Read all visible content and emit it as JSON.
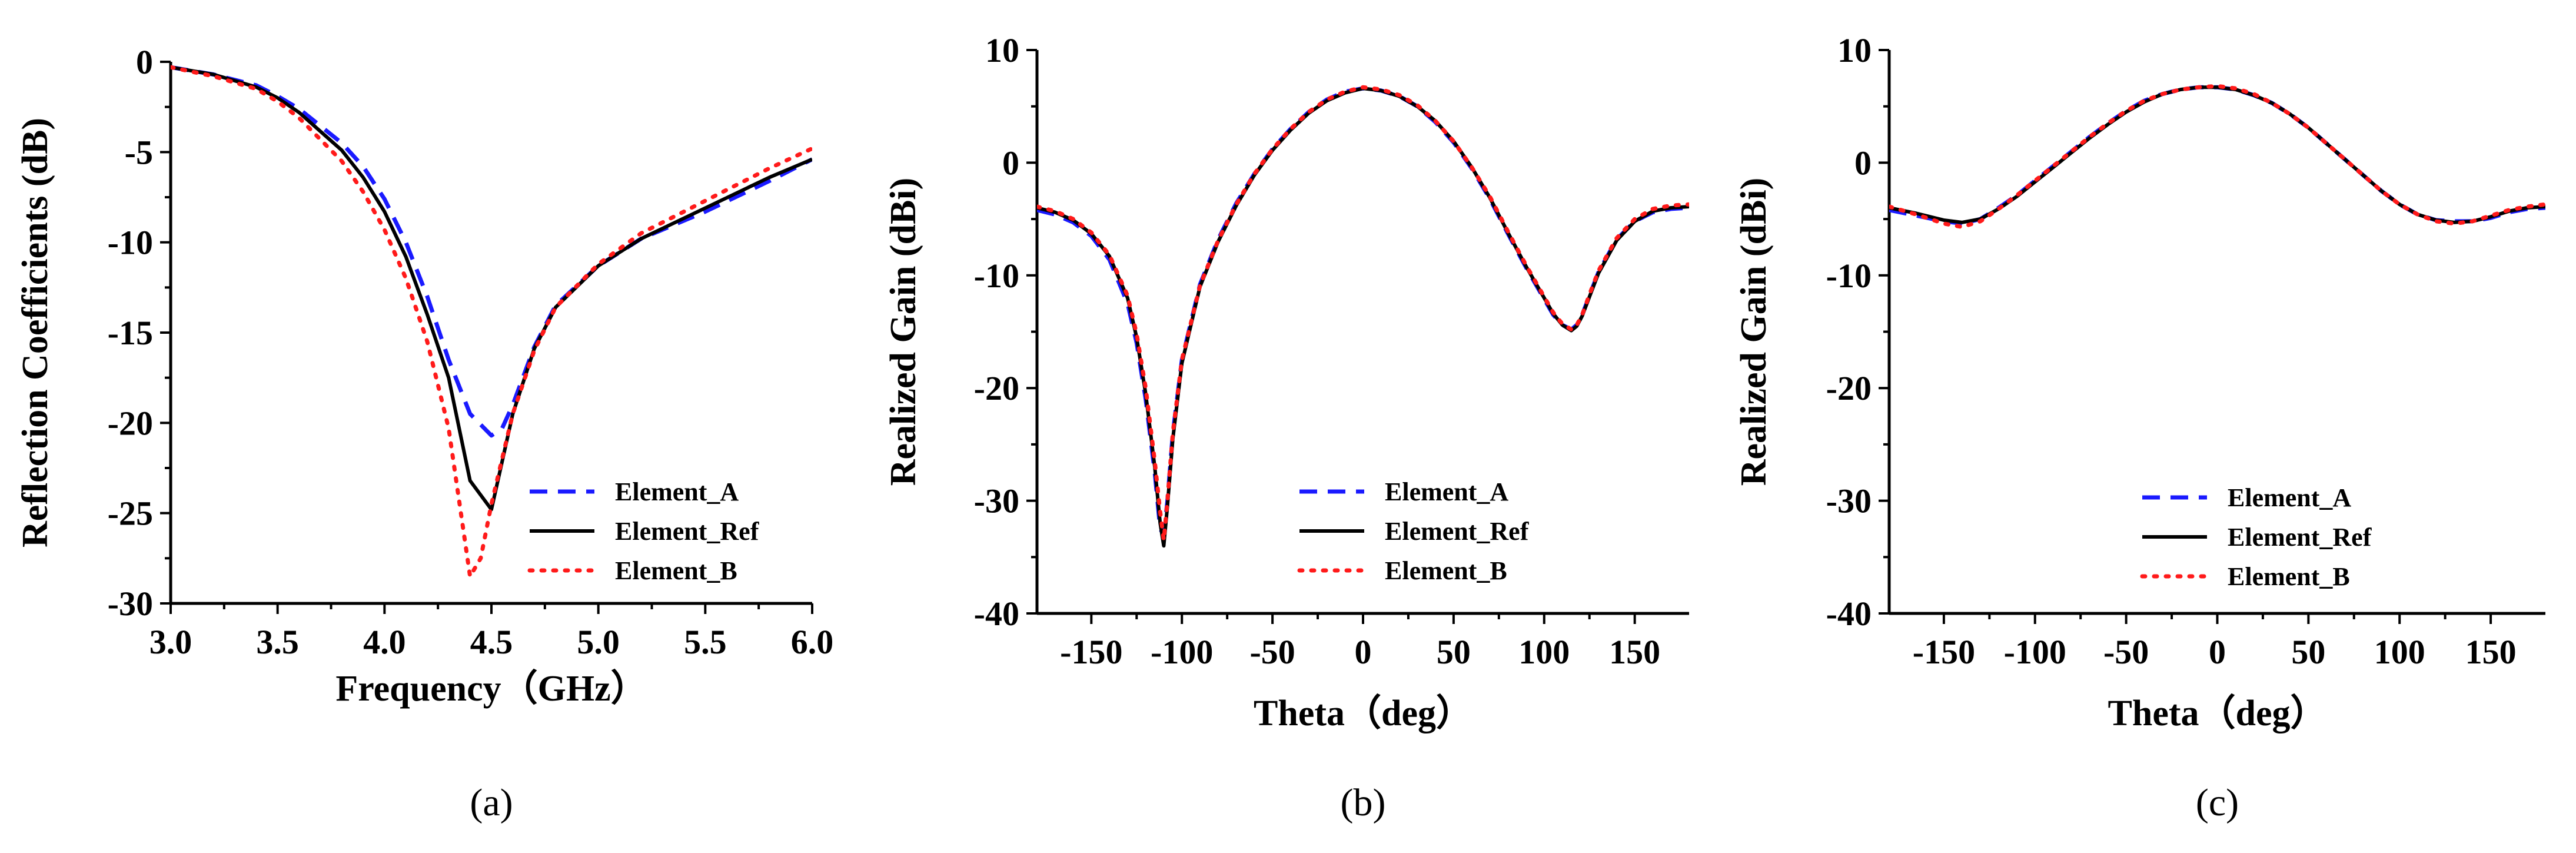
{
  "chart_data": [
    {
      "type": "line",
      "panel_label": "(a)",
      "xlabel": "Frequency（GHz）",
      "ylabel": "Reflection Coefficients (dB)",
      "xlim": [
        3.0,
        6.0
      ],
      "ylim": [
        -30,
        0
      ],
      "xticks": [
        3.0,
        3.5,
        4.0,
        4.5,
        5.0,
        5.5,
        6.0
      ],
      "xtick_labels": [
        "3.0",
        "3.5",
        "4.0",
        "4.5",
        "5.0",
        "5.5",
        "6.0"
      ],
      "yticks": [
        0,
        -5,
        -10,
        -15,
        -20,
        -25,
        -30
      ],
      "ytick_labels": [
        "0",
        "-5",
        "-10",
        "-15",
        "-20",
        "-25",
        "-30"
      ],
      "legend_position": "lower-right",
      "series": [
        {
          "name": "Element_A",
          "color": "#1a1aff",
          "dash": "dashed",
          "x": [
            3.0,
            3.2,
            3.4,
            3.5,
            3.6,
            3.8,
            3.9,
            4.0,
            4.1,
            4.2,
            4.3,
            4.4,
            4.5,
            4.55,
            4.6,
            4.7,
            4.8,
            5.0,
            5.2,
            5.5,
            5.8,
            6.0
          ],
          "y": [
            -0.3,
            -0.7,
            -1.3,
            -1.9,
            -2.6,
            -4.5,
            -5.8,
            -7.6,
            -10.0,
            -13.0,
            -16.5,
            -19.5,
            -20.7,
            -20.3,
            -19.0,
            -15.8,
            -13.5,
            -11.3,
            -9.8,
            -8.3,
            -6.6,
            -5.4
          ]
        },
        {
          "name": "Element_Ref",
          "color": "#000000",
          "dash": "solid",
          "x": [
            3.0,
            3.2,
            3.4,
            3.5,
            3.6,
            3.8,
            3.9,
            4.0,
            4.1,
            4.2,
            4.3,
            4.4,
            4.5,
            4.6,
            4.7,
            4.8,
            5.0,
            5.2,
            5.5,
            5.8,
            6.0
          ],
          "y": [
            -0.3,
            -0.7,
            -1.4,
            -2.0,
            -2.8,
            -4.9,
            -6.4,
            -8.3,
            -10.8,
            -14.0,
            -17.5,
            -23.2,
            -24.8,
            -19.5,
            -15.9,
            -13.6,
            -11.3,
            -9.8,
            -8.1,
            -6.4,
            -5.4
          ]
        },
        {
          "name": "Element_B",
          "color": "#ff1a1a",
          "dash": "dotted",
          "x": [
            3.0,
            3.2,
            3.4,
            3.5,
            3.6,
            3.8,
            3.9,
            4.0,
            4.1,
            4.2,
            4.3,
            4.4,
            4.45,
            4.5,
            4.6,
            4.7,
            4.8,
            5.0,
            5.2,
            5.5,
            5.8,
            6.0
          ],
          "y": [
            -0.3,
            -0.8,
            -1.5,
            -2.2,
            -3.1,
            -5.5,
            -7.2,
            -9.3,
            -12.0,
            -15.5,
            -20.3,
            -28.5,
            -27.5,
            -24.5,
            -19.5,
            -16.0,
            -13.6,
            -11.2,
            -9.5,
            -7.7,
            -5.9,
            -4.8
          ]
        }
      ]
    },
    {
      "type": "line",
      "panel_label": "(b)",
      "xlabel": "Theta（deg）",
      "ylabel": "Realized Gain (dBi)",
      "xlim": [
        -180,
        180
      ],
      "ylim": [
        -40,
        10
      ],
      "xticks": [
        -150,
        -100,
        -50,
        0,
        50,
        100,
        150
      ],
      "xtick_labels": [
        "-150",
        "-100",
        "-50",
        "0",
        "50",
        "100",
        "150"
      ],
      "yticks": [
        10,
        0,
        -10,
        -20,
        -30,
        -40
      ],
      "ytick_labels": [
        "10",
        "0",
        "-10",
        "-20",
        "-30",
        "-40"
      ],
      "legend_position": "lower-center",
      "series": [
        {
          "name": "Element_A",
          "color": "#1a1aff",
          "dash": "dashed",
          "x": [
            -180,
            -170,
            -160,
            -150,
            -140,
            -130,
            -125,
            -120,
            -115,
            -112,
            -110,
            -108,
            -105,
            -100,
            -90,
            -80,
            -70,
            -60,
            -50,
            -40,
            -30,
            -20,
            -10,
            0,
            10,
            20,
            30,
            40,
            50,
            60,
            70,
            80,
            90,
            100,
            105,
            110,
            115,
            118,
            121,
            125,
            130,
            140,
            150,
            160,
            170,
            180
          ],
          "y": [
            -4.2,
            -4.6,
            -5.3,
            -6.5,
            -8.6,
            -12.5,
            -16.0,
            -21.0,
            -27.5,
            -32.5,
            -33.0,
            -30.0,
            -24.0,
            -17.5,
            -10.8,
            -6.8,
            -3.6,
            -1.0,
            1.2,
            3.0,
            4.5,
            5.6,
            6.3,
            6.6,
            6.4,
            5.9,
            5.0,
            3.6,
            1.8,
            -0.5,
            -3.2,
            -6.3,
            -9.3,
            -12.1,
            -13.5,
            -14.4,
            -14.8,
            -14.4,
            -13.5,
            -11.8,
            -9.7,
            -6.8,
            -5.2,
            -4.4,
            -4.1,
            -4.0
          ]
        },
        {
          "name": "Element_Ref",
          "color": "#000000",
          "dash": "solid",
          "x": [
            -180,
            -170,
            -160,
            -150,
            -140,
            -130,
            -125,
            -120,
            -115,
            -112,
            -110,
            -108,
            -105,
            -100,
            -90,
            -80,
            -70,
            -60,
            -50,
            -40,
            -30,
            -20,
            -10,
            0,
            10,
            20,
            30,
            40,
            50,
            60,
            70,
            80,
            90,
            100,
            105,
            110,
            115,
            118,
            121,
            125,
            130,
            140,
            150,
            160,
            170,
            180
          ],
          "y": [
            -4.0,
            -4.4,
            -5.1,
            -6.3,
            -8.3,
            -12.0,
            -15.5,
            -20.5,
            -27.0,
            -32.0,
            -34.0,
            -30.5,
            -24.5,
            -17.8,
            -11.0,
            -7.0,
            -3.8,
            -1.1,
            1.1,
            2.9,
            4.4,
            5.5,
            6.2,
            6.6,
            6.4,
            5.9,
            5.0,
            3.7,
            1.9,
            -0.4,
            -3.1,
            -6.2,
            -9.2,
            -12.0,
            -13.4,
            -14.4,
            -14.9,
            -14.5,
            -13.6,
            -11.9,
            -9.8,
            -6.9,
            -5.2,
            -4.3,
            -4.0,
            -3.9
          ]
        },
        {
          "name": "Element_B",
          "color": "#ff1a1a",
          "dash": "dotted",
          "x": [
            -180,
            -170,
            -160,
            -150,
            -140,
            -130,
            -125,
            -120,
            -115,
            -112,
            -110,
            -108,
            -105,
            -100,
            -90,
            -80,
            -70,
            -60,
            -50,
            -40,
            -30,
            -20,
            -10,
            0,
            10,
            20,
            30,
            40,
            50,
            60,
            70,
            80,
            90,
            100,
            105,
            110,
            115,
            118,
            121,
            125,
            130,
            140,
            150,
            160,
            170,
            180
          ],
          "y": [
            -3.9,
            -4.3,
            -5.0,
            -6.2,
            -8.2,
            -11.8,
            -15.2,
            -20.0,
            -26.5,
            -31.0,
            -33.5,
            -30.0,
            -24.0,
            -17.5,
            -10.9,
            -6.9,
            -3.7,
            -1.0,
            1.2,
            3.0,
            4.5,
            5.6,
            6.3,
            6.7,
            6.5,
            6.0,
            5.1,
            3.7,
            1.9,
            -0.4,
            -3.0,
            -6.1,
            -9.1,
            -11.9,
            -13.3,
            -14.3,
            -14.8,
            -14.4,
            -13.5,
            -11.7,
            -9.6,
            -6.7,
            -5.0,
            -4.1,
            -3.8,
            -3.7
          ]
        }
      ]
    },
    {
      "type": "line",
      "panel_label": "(c)",
      "xlabel": "Theta（deg）",
      "ylabel": "Realized Gain (dBi)",
      "xlim": [
        -180,
        180
      ],
      "ylim": [
        -40,
        10
      ],
      "xticks": [
        -150,
        -100,
        -50,
        0,
        50,
        100,
        150
      ],
      "xtick_labels": [
        "-150",
        "-100",
        "-50",
        "0",
        "50",
        "100",
        "150"
      ],
      "yticks": [
        10,
        0,
        -10,
        -20,
        -30,
        -40
      ],
      "ytick_labels": [
        "10",
        "0",
        "-10",
        "-20",
        "-30",
        "-40"
      ],
      "legend_position": "lower-center",
      "series": [
        {
          "name": "Element_A",
          "color": "#1a1aff",
          "dash": "dashed",
          "x": [
            -180,
            -165,
            -150,
            -140,
            -130,
            -120,
            -110,
            -100,
            -90,
            -80,
            -70,
            -60,
            -50,
            -40,
            -30,
            -20,
            -10,
            0,
            10,
            20,
            30,
            40,
            50,
            60,
            70,
            80,
            90,
            100,
            110,
            120,
            130,
            140,
            150,
            160,
            170,
            180
          ],
          "y": [
            -4.2,
            -4.7,
            -5.2,
            -5.4,
            -5.0,
            -4.0,
            -2.9,
            -1.6,
            -0.3,
            1.0,
            2.3,
            3.5,
            4.6,
            5.5,
            6.1,
            6.5,
            6.7,
            6.7,
            6.5,
            6.0,
            5.3,
            4.3,
            3.1,
            1.7,
            0.3,
            -1.1,
            -2.5,
            -3.7,
            -4.6,
            -5.1,
            -5.2,
            -5.2,
            -4.9,
            -4.4,
            -4.1,
            -4.0
          ]
        },
        {
          "name": "Element_Ref",
          "color": "#000000",
          "dash": "solid",
          "x": [
            -180,
            -165,
            -150,
            -140,
            -130,
            -120,
            -110,
            -100,
            -90,
            -80,
            -70,
            -60,
            -50,
            -40,
            -30,
            -20,
            -10,
            0,
            10,
            20,
            30,
            40,
            50,
            60,
            70,
            80,
            90,
            100,
            110,
            120,
            130,
            140,
            150,
            160,
            170,
            180
          ],
          "y": [
            -4.0,
            -4.5,
            -5.1,
            -5.3,
            -5.0,
            -4.1,
            -3.0,
            -1.7,
            -0.4,
            0.9,
            2.2,
            3.4,
            4.5,
            5.4,
            6.1,
            6.5,
            6.7,
            6.7,
            6.5,
            6.0,
            5.3,
            4.3,
            3.1,
            1.7,
            0.3,
            -1.1,
            -2.5,
            -3.7,
            -4.6,
            -5.1,
            -5.3,
            -5.2,
            -4.8,
            -4.3,
            -4.0,
            -3.9
          ]
        },
        {
          "name": "Element_B",
          "color": "#ff1a1a",
          "dash": "dotted",
          "x": [
            -180,
            -165,
            -150,
            -140,
            -130,
            -120,
            -110,
            -100,
            -90,
            -80,
            -70,
            -60,
            -50,
            -40,
            -30,
            -20,
            -10,
            0,
            10,
            20,
            30,
            40,
            50,
            60,
            70,
            80,
            90,
            100,
            110,
            120,
            130,
            140,
            150,
            160,
            170,
            180
          ],
          "y": [
            -3.9,
            -4.6,
            -5.4,
            -5.7,
            -5.2,
            -4.1,
            -2.9,
            -1.6,
            -0.3,
            1.0,
            2.3,
            3.5,
            4.6,
            5.5,
            6.1,
            6.5,
            6.7,
            6.8,
            6.6,
            6.1,
            5.3,
            4.3,
            3.1,
            1.7,
            0.3,
            -1.1,
            -2.5,
            -3.7,
            -4.6,
            -5.2,
            -5.4,
            -5.2,
            -4.7,
            -4.2,
            -3.9,
            -3.7
          ]
        }
      ]
    }
  ]
}
